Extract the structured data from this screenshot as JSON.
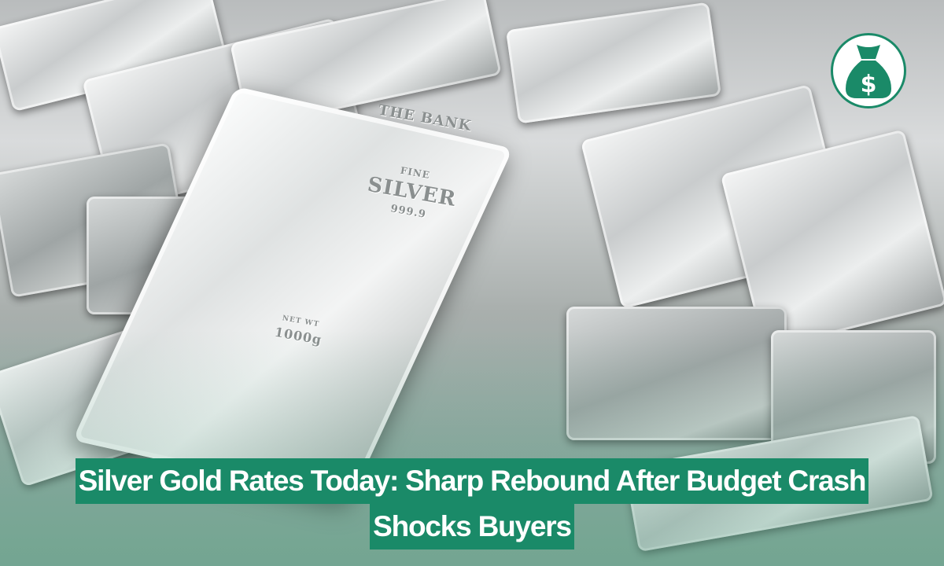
{
  "background": {
    "description_icon": "silver-bars-photo",
    "engraving": {
      "maker": "THE BANK",
      "fine": "FINE",
      "metal": "SILVER",
      "purity": "999.9",
      "net_wt_label": "NET WT",
      "weight": "1000g"
    }
  },
  "logo": {
    "icon": "money-bag-dollar-icon",
    "color": "#1a8a68"
  },
  "headline": {
    "line1": "Silver Gold Rates Today: Sharp Rebound After Budget Crash",
    "line2": "Shocks Buyers",
    "background_color": "#1a8a68",
    "text_color": "#ffffff"
  }
}
